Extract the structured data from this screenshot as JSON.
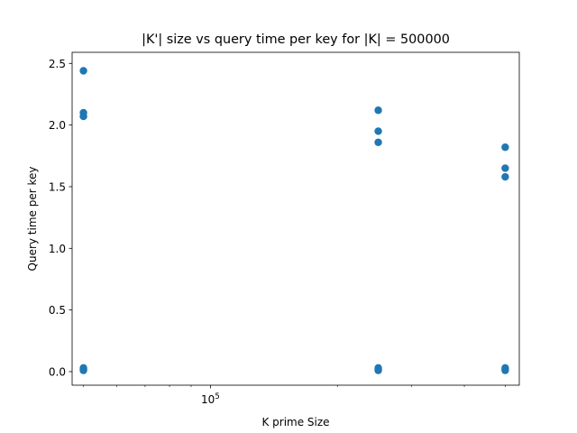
{
  "chart_data": {
    "type": "scatter",
    "title": "|K'| size vs query time per key for |K| = 500000",
    "xlabel": "K prime Size",
    "ylabel": "Query time per key",
    "xscale": "log",
    "xlim": [
      47000,
      540000
    ],
    "ylim": [
      -0.11,
      2.59
    ],
    "x_major_ticks": [
      {
        "value": 100000,
        "base": "10",
        "exp": "5"
      }
    ],
    "x_minor_ticks": [
      50000,
      60000,
      70000,
      80000,
      90000,
      200000,
      300000,
      400000,
      500000
    ],
    "y_ticks": [
      {
        "value": 0.0,
        "label": "0.0"
      },
      {
        "value": 0.5,
        "label": "0.5"
      },
      {
        "value": 1.0,
        "label": "1.0"
      },
      {
        "value": 1.5,
        "label": "1.5"
      },
      {
        "value": 2.0,
        "label": "2.0"
      },
      {
        "value": 2.5,
        "label": "2.5"
      }
    ],
    "grid": false,
    "marker_color": "#1f77b4",
    "series": [
      {
        "points": [
          {
            "x": 50000,
            "y": 2.44
          },
          {
            "x": 50000,
            "y": 2.1
          },
          {
            "x": 50000,
            "y": 2.07
          },
          {
            "x": 50000,
            "y": 0.03
          },
          {
            "x": 50000,
            "y": 0.02
          },
          {
            "x": 50000,
            "y": 0.01
          },
          {
            "x": 250000,
            "y": 2.12
          },
          {
            "x": 250000,
            "y": 1.95
          },
          {
            "x": 250000,
            "y": 1.86
          },
          {
            "x": 250000,
            "y": 0.03
          },
          {
            "x": 250000,
            "y": 0.02
          },
          {
            "x": 250000,
            "y": 0.01
          },
          {
            "x": 500000,
            "y": 1.82
          },
          {
            "x": 500000,
            "y": 1.65
          },
          {
            "x": 500000,
            "y": 1.58
          },
          {
            "x": 500000,
            "y": 0.03
          },
          {
            "x": 500000,
            "y": 0.02
          },
          {
            "x": 500000,
            "y": 0.01
          }
        ]
      }
    ]
  }
}
